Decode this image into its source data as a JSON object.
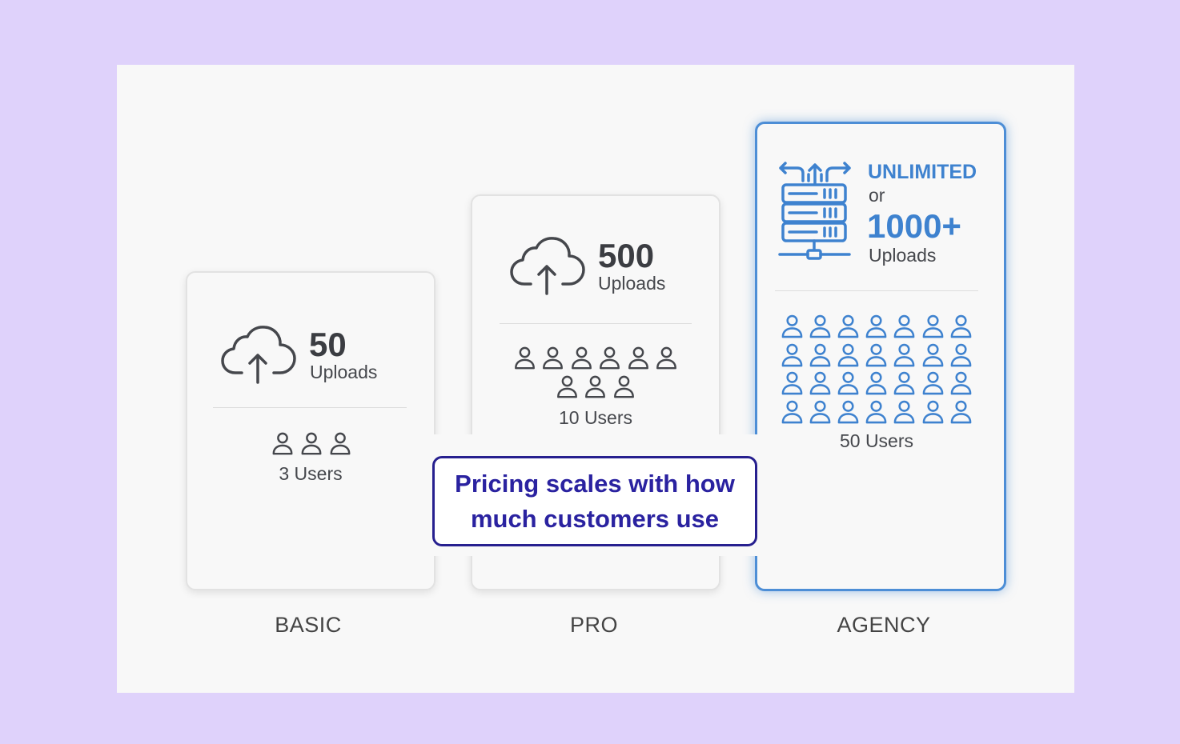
{
  "tiers": {
    "basic": {
      "label": "BASIC",
      "uploads_count": "50",
      "uploads_label": "Uploads",
      "users_label": "3 Users",
      "user_icon_count": 3
    },
    "pro": {
      "label": "PRO",
      "uploads_count": "500",
      "uploads_label": "Uploads",
      "users_label": "10 Users",
      "user_icon_count": 9
    },
    "agency": {
      "label": "AGENCY",
      "unlimited_label": "UNLIMITED",
      "or_label": "or",
      "uploads_count": "1000+",
      "uploads_label": "Uploads",
      "users_label": "50 Users",
      "user_icon_count": 28
    }
  },
  "callout": {
    "line1": "Pricing scales with how",
    "line2": "much customers use"
  },
  "icons": {
    "upload": "cloud-upload-icon",
    "user": "user-icon",
    "server": "server-network-icon"
  },
  "colors": {
    "background": "#dfd2fb",
    "canvas": "#f8f8f8",
    "gray_icon": "#45474c",
    "agency_accent": "#3e82cf",
    "callout_text": "#2a22a0",
    "callout_border": "#27208f"
  }
}
